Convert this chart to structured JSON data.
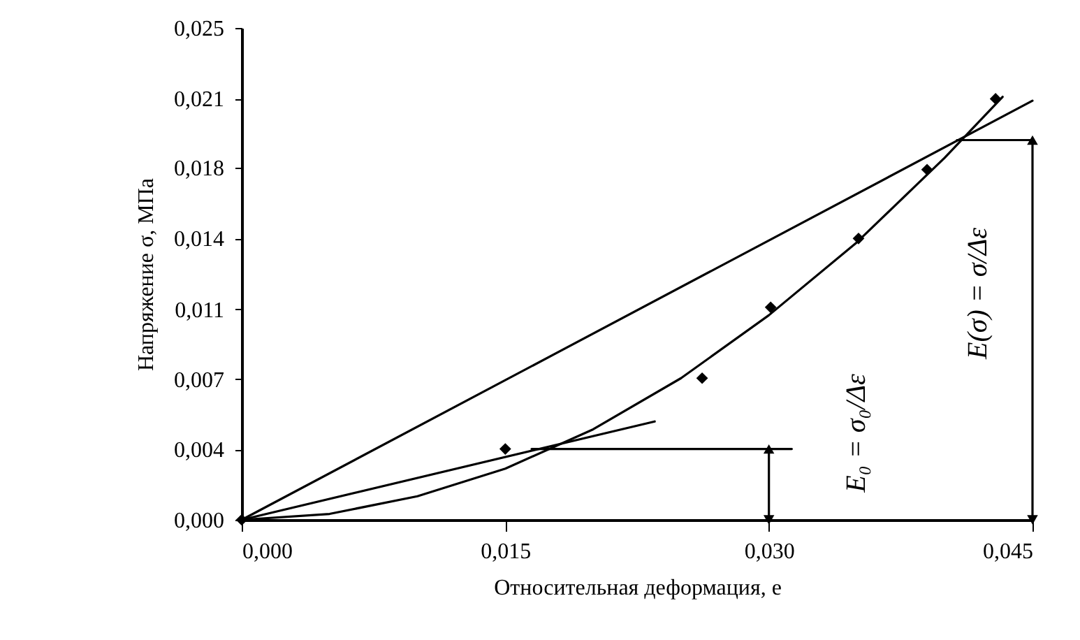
{
  "chart_data": {
    "type": "line",
    "xlabel": "Относительная деформация, е",
    "ylabel": "Напряжение σ, МПа",
    "xlim": [
      0,
      0.045
    ],
    "ylim": [
      0,
      0.025
    ],
    "xticks": [
      {
        "value": 0,
        "label": "0,000"
      },
      {
        "value": 0.015,
        "label": "0,015"
      },
      {
        "value": 0.03,
        "label": "0,030"
      },
      {
        "value": 0.045,
        "label": "0,045"
      }
    ],
    "yticks": [
      {
        "value": 0,
        "label": "0,000"
      },
      {
        "value": 0.00357,
        "label": "0,004"
      },
      {
        "value": 0.00714,
        "label": "0,007"
      },
      {
        "value": 0.0107,
        "label": "0,011"
      },
      {
        "value": 0.0143,
        "label": "0,014"
      },
      {
        "value": 0.0179,
        "label": "0,018"
      },
      {
        "value": 0.0214,
        "label": "0,021"
      },
      {
        "value": 0.025,
        "label": "0,025"
      }
    ],
    "series": [
      {
        "type": "scatter",
        "marker": "diamond",
        "color": "#000000",
        "x": [
          0,
          0.015,
          0.0262,
          0.0301,
          0.0351,
          0.039,
          0.0429
        ],
        "values": [
          0,
          0.0036,
          0.0072,
          0.0108,
          0.0143,
          0.0178,
          0.0214
        ]
      },
      {
        "color": "#000000",
        "x": [
          0,
          0.005,
          0.01,
          0.015,
          0.02,
          0.025,
          0.03,
          0.035,
          0.04,
          0.0433
        ],
        "values": [
          0,
          0.0003,
          0.0012,
          0.0026,
          0.0046,
          0.0072,
          0.0104,
          0.0141,
          0.0184,
          0.0215
        ]
      },
      {
        "color": "#000000",
        "x": [
          0,
          0.045
        ],
        "values": [
          0,
          0.0213
        ]
      },
      {
        "color": "#000000",
        "x": [
          0,
          0.0235
        ],
        "values": [
          0,
          0.005
        ]
      },
      {
        "color": "#000000",
        "x": [
          0.0165,
          0.0313
        ],
        "values": [
          0.0036,
          0.0036
        ]
      },
      {
        "color": "#000000",
        "x": [
          0.0407,
          0.045
        ],
        "values": [
          0.0193,
          0.0193
        ]
      },
      {
        "marker": "triangle",
        "color": "#000000",
        "x": [
          0.03,
          0.03
        ],
        "values": [
          0,
          0.0036
        ]
      },
      {
        "marker": "triangle",
        "color": "#000000",
        "x": [
          0.045,
          0.045
        ],
        "values": [
          0,
          0.0193
        ]
      }
    ],
    "annotations": [
      "E₀ = σ₀/Δε",
      "E(σ) = σ/Δε"
    ]
  }
}
